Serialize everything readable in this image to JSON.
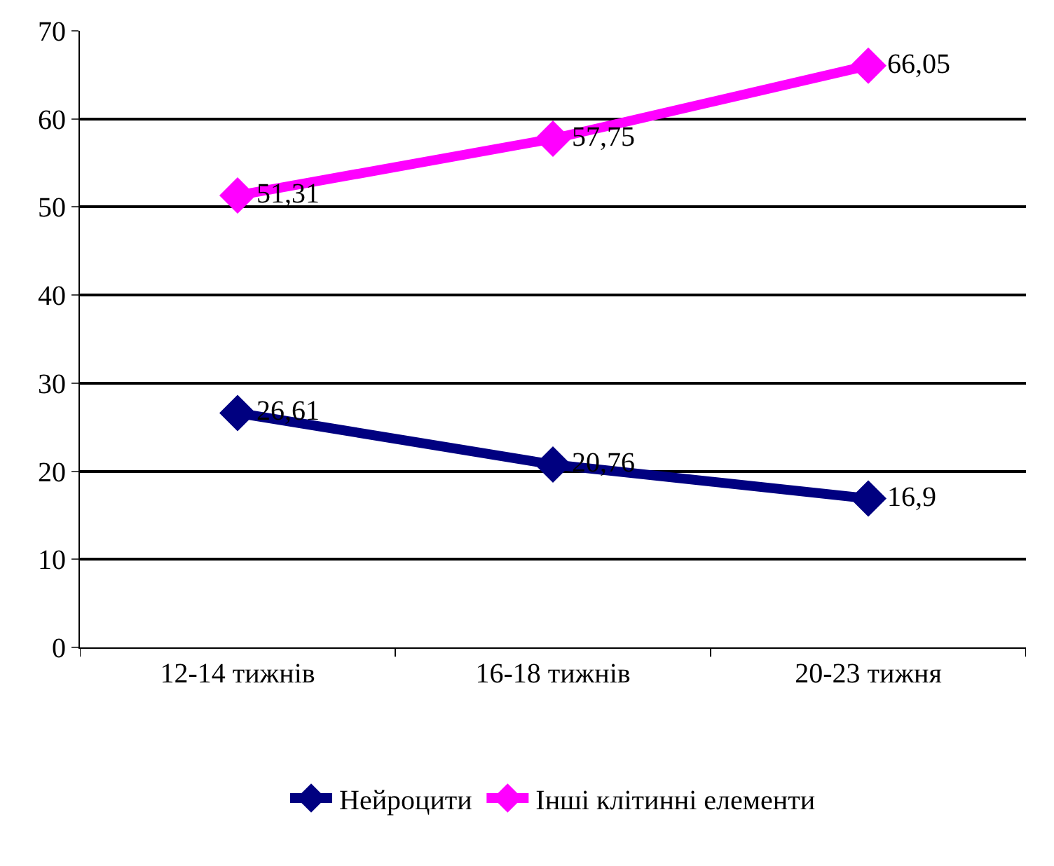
{
  "chart_data": {
    "type": "line",
    "categories": [
      "12-14 тижнів",
      "16-18 тижнів",
      "20-23 тижня"
    ],
    "series": [
      {
        "name": "Нейроцити",
        "color": "#000080",
        "values": [
          26.61,
          20.76,
          16.9
        ],
        "value_labels": [
          "26,61",
          "20,76",
          "16,9"
        ]
      },
      {
        "name": "Інші клітинні елементи",
        "color": "#ff00ff",
        "values": [
          51.31,
          57.75,
          66.05
        ],
        "value_labels": [
          "51,31",
          "57,75",
          "66,05"
        ]
      }
    ],
    "ylim": [
      0,
      70
    ],
    "yticks": [
      0,
      10,
      20,
      30,
      40,
      50,
      60,
      70
    ],
    "grid": "y",
    "legend": "bottom",
    "marker": "diamond",
    "line_style": "solid"
  }
}
